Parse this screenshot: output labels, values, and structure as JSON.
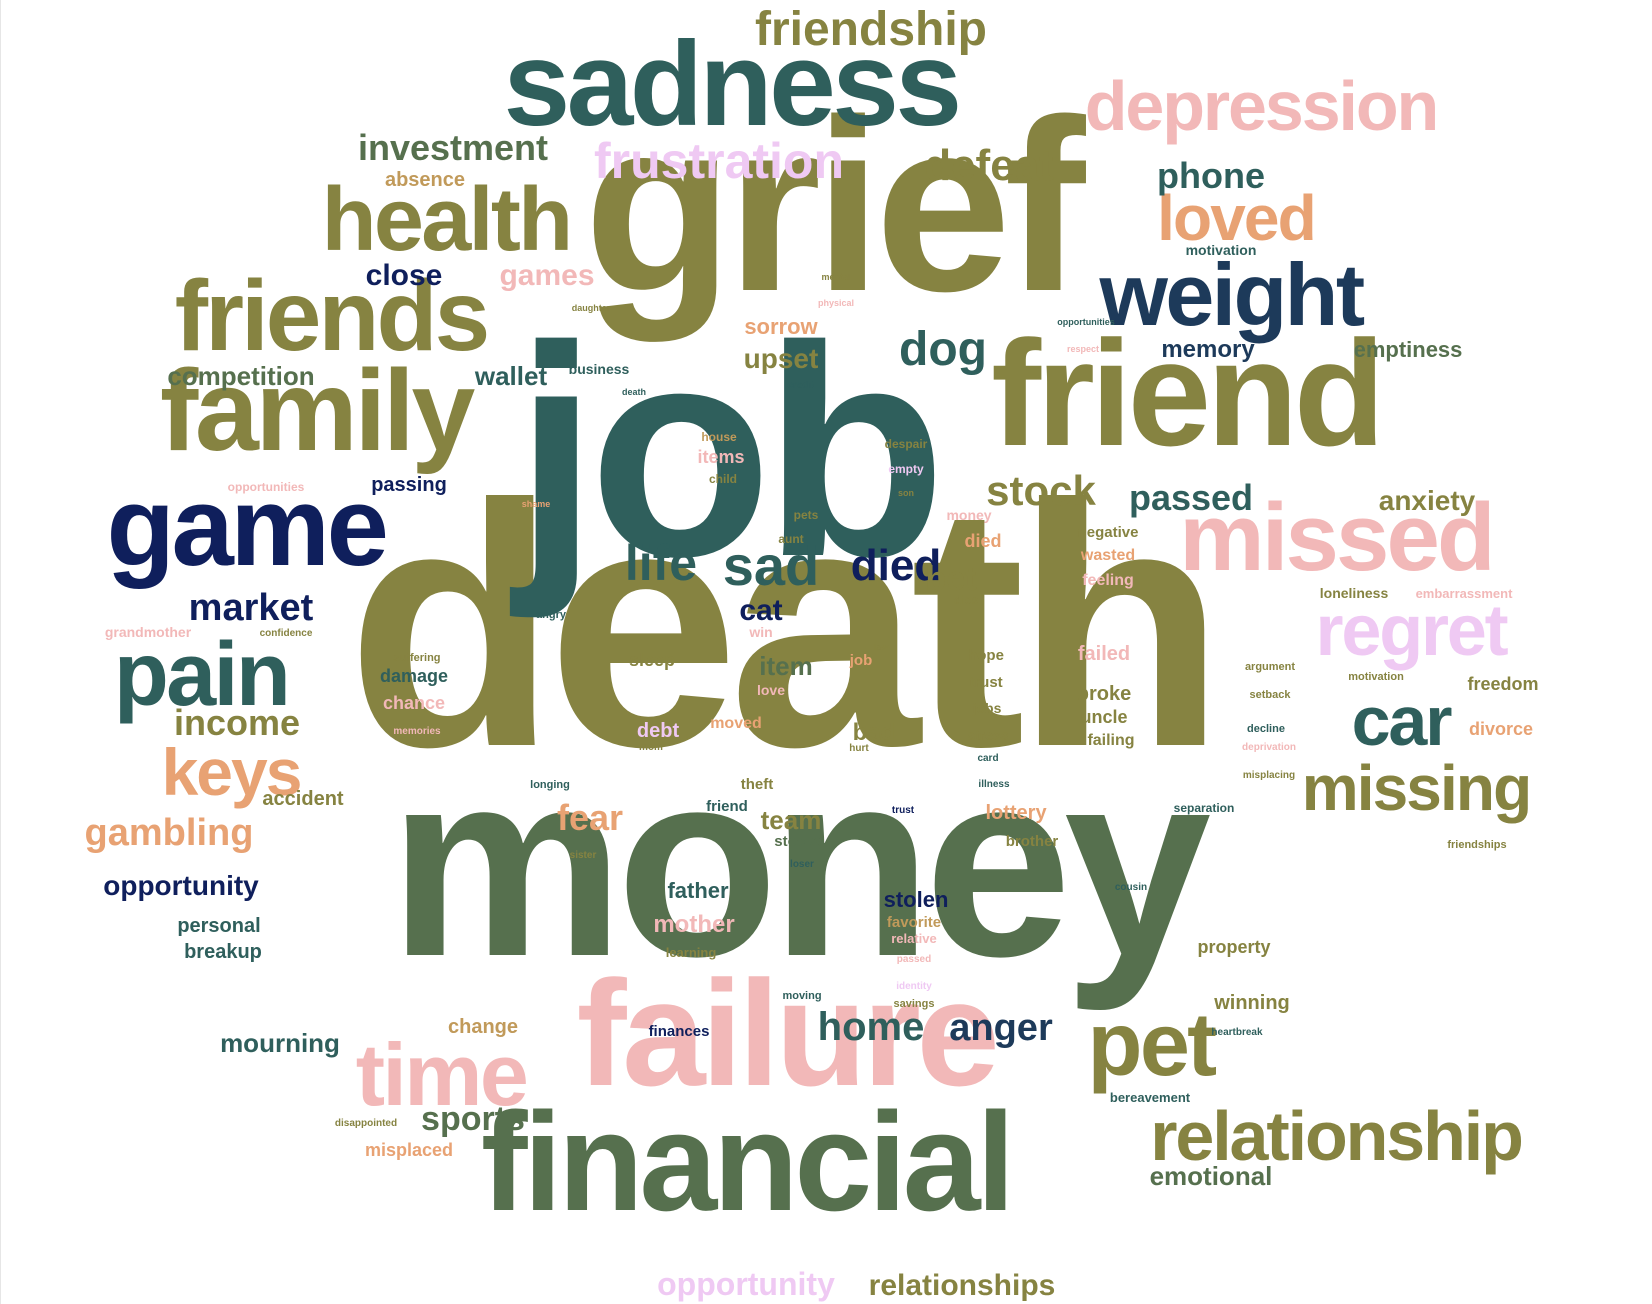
{
  "palette": {
    "olive": "#868341",
    "slate": "#2f5f5c",
    "navy": "#0f1f5c",
    "deep_blue": "#1d3a5a",
    "green": "#56704e",
    "pink": "#f2b8b8",
    "orange": "#e8a273",
    "lilac": "#efc9f3",
    "tan": "#c19a5a"
  },
  "words": [
    {
      "text": "death",
      "color": "olive",
      "weight": 100
    },
    {
      "text": "money",
      "color": "green",
      "weight": 96
    },
    {
      "text": "job",
      "color": "slate",
      "weight": 90
    },
    {
      "text": "grief",
      "color": "olive",
      "weight": 86
    },
    {
      "text": "failure",
      "color": "pink",
      "weight": 62
    },
    {
      "text": "friend",
      "color": "olive",
      "weight": 60
    },
    {
      "text": "financial",
      "color": "green",
      "weight": 58
    },
    {
      "text": "sadness",
      "color": "slate",
      "weight": 55
    },
    {
      "text": "family",
      "color": "olive",
      "weight": 52
    },
    {
      "text": "game",
      "color": "navy",
      "weight": 50
    },
    {
      "text": "missed",
      "color": "pink",
      "weight": 45
    },
    {
      "text": "friends",
      "color": "olive",
      "weight": 45
    },
    {
      "text": "health",
      "color": "olive",
      "weight": 43
    },
    {
      "text": "weight",
      "color": "deep_blue",
      "weight": 42
    },
    {
      "text": "time",
      "color": "pink",
      "weight": 40
    },
    {
      "text": "pet",
      "color": "olive",
      "weight": 40
    },
    {
      "text": "pain",
      "color": "slate",
      "weight": 38
    },
    {
      "text": "depression",
      "color": "pink",
      "weight": 32
    },
    {
      "text": "relationship",
      "color": "olive",
      "weight": 32
    },
    {
      "text": "missing",
      "color": "olive",
      "weight": 30
    },
    {
      "text": "regret",
      "color": "lilac",
      "weight": 30
    },
    {
      "text": "car",
      "color": "slate",
      "weight": 30
    },
    {
      "text": "keys",
      "color": "orange",
      "weight": 30
    },
    {
      "text": "loved",
      "color": "orange",
      "weight": 28
    },
    {
      "text": "friendship",
      "color": "olive",
      "weight": 25
    },
    {
      "text": "frustration",
      "color": "lilac",
      "weight": 25
    },
    {
      "text": "defeat",
      "color": "olive",
      "weight": 23
    },
    {
      "text": "sad",
      "color": "slate",
      "weight": 24
    },
    {
      "text": "home",
      "color": "slate",
      "weight": 20
    },
    {
      "text": "dog",
      "color": "slate",
      "weight": 23
    },
    {
      "text": "life",
      "color": "slate",
      "weight": 22
    },
    {
      "text": "died",
      "color": "navy",
      "weight": 21
    },
    {
      "text": "stock",
      "color": "olive",
      "weight": 20
    },
    {
      "text": "anger",
      "color": "deep_blue",
      "weight": 19
    },
    {
      "text": "investment",
      "color": "green",
      "weight": 19
    },
    {
      "text": "gambling",
      "color": "orange",
      "weight": 18
    },
    {
      "text": "market",
      "color": "navy",
      "weight": 18
    },
    {
      "text": "passed",
      "color": "slate",
      "weight": 17
    },
    {
      "text": "phone",
      "color": "slate",
      "weight": 17
    },
    {
      "text": "sports",
      "color": "green",
      "weight": 16
    },
    {
      "text": "income",
      "color": "olive",
      "weight": 16
    },
    {
      "text": "fear",
      "color": "orange",
      "weight": 16
    },
    {
      "text": "relationships",
      "color": "olive",
      "weight": 15
    },
    {
      "text": "opportunity",
      "color": "lilac",
      "weight": 15
    },
    {
      "text": "close",
      "color": "navy",
      "weight": 14
    },
    {
      "text": "anxiety",
      "color": "olive",
      "weight": 14
    },
    {
      "text": "bet",
      "color": "olive",
      "weight": 14
    },
    {
      "text": "cat",
      "color": "navy",
      "weight": 14
    },
    {
      "text": "games",
      "color": "pink",
      "weight": 14
    },
    {
      "text": "emotional",
      "color": "green",
      "weight": 13
    },
    {
      "text": "opportunity",
      "color": "navy",
      "weight": 13
    },
    {
      "text": "mourning",
      "color": "slate",
      "weight": 13
    },
    {
      "text": "upset",
      "color": "olive",
      "weight": 13
    },
    {
      "text": "competition",
      "color": "green",
      "weight": 12
    },
    {
      "text": "wallet",
      "color": "slate",
      "weight": 12
    },
    {
      "text": "memory",
      "color": "deep_blue",
      "weight": 12
    },
    {
      "text": "emptiness",
      "color": "green",
      "weight": 11
    },
    {
      "text": "item",
      "color": "green",
      "weight": 12
    },
    {
      "text": "team",
      "color": "olive",
      "weight": 12
    },
    {
      "text": "bad",
      "color": "olive",
      "weight": 12
    },
    {
      "text": "mother",
      "color": "pink",
      "weight": 12
    },
    {
      "text": "father",
      "color": "slate",
      "weight": 11
    },
    {
      "text": "stolen",
      "color": "navy",
      "weight": 11
    },
    {
      "text": "sorrow",
      "color": "orange",
      "weight": 11
    },
    {
      "text": "absence",
      "color": "tan",
      "weight": 10
    },
    {
      "text": "personal",
      "color": "slate",
      "weight": 10
    },
    {
      "text": "breakup",
      "color": "slate",
      "weight": 10
    },
    {
      "text": "accident",
      "color": "olive",
      "weight": 10
    },
    {
      "text": "lottery",
      "color": "orange",
      "weight": 10
    },
    {
      "text": "winning",
      "color": "olive",
      "weight": 10
    },
    {
      "text": "failed",
      "color": "pink",
      "weight": 10
    },
    {
      "text": "broke",
      "color": "olive",
      "weight": 10
    },
    {
      "text": "passing",
      "color": "navy",
      "weight": 10
    },
    {
      "text": "debt",
      "color": "lilac",
      "weight": 10
    },
    {
      "text": "change",
      "color": "tan",
      "weight": 10
    },
    {
      "text": "misplaced",
      "color": "orange",
      "weight": 10
    },
    {
      "text": "freedom",
      "color": "olive",
      "weight": 10
    },
    {
      "text": "divorce",
      "color": "orange",
      "weight": 10
    },
    {
      "text": "property",
      "color": "olive",
      "weight": 9
    },
    {
      "text": "sleep",
      "color": "olive",
      "weight": 9
    },
    {
      "text": "chance",
      "color": "pink",
      "weight": 9
    },
    {
      "text": "damage",
      "color": "slate",
      "weight": 9
    },
    {
      "text": "uncle",
      "color": "olive",
      "weight": 9
    },
    {
      "text": "items",
      "color": "pink",
      "weight": 9
    },
    {
      "text": "died",
      "color": "orange",
      "weight": 9
    },
    {
      "text": "moved",
      "color": "orange",
      "weight": 9
    },
    {
      "text": "wasted",
      "color": "orange",
      "weight": 8
    },
    {
      "text": "feeling",
      "color": "pink",
      "weight": 8
    },
    {
      "text": "failing",
      "color": "olive",
      "weight": 8
    },
    {
      "text": "finances",
      "color": "navy",
      "weight": 8
    },
    {
      "text": "favorite",
      "color": "tan",
      "weight": 8
    },
    {
      "text": "negative",
      "color": "olive",
      "weight": 8
    },
    {
      "text": "hope",
      "color": "olive",
      "weight": 8
    },
    {
      "text": "trust",
      "color": "olive",
      "weight": 8
    },
    {
      "text": "job",
      "color": "orange",
      "weight": 8
    },
    {
      "text": "love",
      "color": "pink",
      "weight": 8
    },
    {
      "text": "win",
      "color": "pink",
      "weight": 8
    },
    {
      "text": "brother",
      "color": "olive",
      "weight": 8
    },
    {
      "text": "stocks",
      "color": "green",
      "weight": 8
    },
    {
      "text": "theft",
      "color": "olive",
      "weight": 8
    },
    {
      "text": "friend",
      "color": "slate",
      "weight": 8
    },
    {
      "text": "jobs",
      "color": "olive",
      "weight": 7
    },
    {
      "text": "stress",
      "color": "olive",
      "weight": 7
    },
    {
      "text": "business",
      "color": "slate",
      "weight": 7
    },
    {
      "text": "motivation",
      "color": "slate",
      "weight": 7
    },
    {
      "text": "loneliness",
      "color": "olive",
      "weight": 7
    },
    {
      "text": "embarrassment",
      "color": "pink",
      "weight": 7
    },
    {
      "text": "grandmother",
      "color": "pink",
      "weight": 7
    },
    {
      "text": "money",
      "color": "pink",
      "weight": 7
    },
    {
      "text": "learning",
      "color": "olive",
      "weight": 6
    },
    {
      "text": "relative",
      "color": "pink",
      "weight": 6
    },
    {
      "text": "bereavement",
      "color": "slate",
      "weight": 6
    },
    {
      "text": "separation",
      "color": "slate",
      "weight": 6
    },
    {
      "text": "despair",
      "color": "olive",
      "weight": 6
    },
    {
      "text": "empty",
      "color": "lilac",
      "weight": 6
    },
    {
      "text": "house",
      "color": "tan",
      "weight": 6
    },
    {
      "text": "child",
      "color": "olive",
      "weight": 6
    },
    {
      "text": "pets",
      "color": "olive",
      "weight": 6
    },
    {
      "text": "aunt",
      "color": "olive",
      "weight": 6
    },
    {
      "text": "dies",
      "color": "olive",
      "weight": 6
    },
    {
      "text": "longing",
      "color": "slate",
      "weight": 6
    },
    {
      "text": "argument",
      "color": "olive",
      "weight": 6
    },
    {
      "text": "setback",
      "color": "olive",
      "weight": 6
    },
    {
      "text": "motivation",
      "color": "olive",
      "weight": 6
    },
    {
      "text": "friendships",
      "color": "olive",
      "weight": 5
    },
    {
      "text": "decline",
      "color": "slate",
      "weight": 5
    },
    {
      "text": "deprivation",
      "color": "pink",
      "weight": 5
    },
    {
      "text": "misplacing",
      "color": "olive",
      "weight": 5
    },
    {
      "text": "moving",
      "color": "slate",
      "weight": 5
    },
    {
      "text": "savings",
      "color": "olive",
      "weight": 5
    },
    {
      "text": "identity",
      "color": "lilac",
      "weight": 5
    },
    {
      "text": "passed",
      "color": "pink",
      "weight": 5
    },
    {
      "text": "card",
      "color": "slate",
      "weight": 5
    },
    {
      "text": "illness",
      "color": "slate",
      "weight": 5
    },
    {
      "text": "hurt",
      "color": "olive",
      "weight": 5
    },
    {
      "text": "mom",
      "color": "olive",
      "weight": 5
    },
    {
      "text": "angry",
      "color": "slate",
      "weight": 5
    },
    {
      "text": "confidence",
      "color": "olive",
      "weight": 5
    },
    {
      "text": "suffering",
      "color": "olive",
      "weight": 5
    },
    {
      "text": "memories",
      "color": "pink",
      "weight": 5
    },
    {
      "text": "disappointed",
      "color": "olive",
      "weight": 5
    },
    {
      "text": "sister",
      "color": "olive",
      "weight": 5
    },
    {
      "text": "loser",
      "color": "slate",
      "weight": 5
    },
    {
      "text": "trust",
      "color": "navy",
      "weight": 5
    },
    {
      "text": "cousin",
      "color": "slate",
      "weight": 5
    },
    {
      "text": "heartbreak",
      "color": "slate",
      "weight": 5
    },
    {
      "text": "opportunities",
      "color": "pink",
      "weight": 5
    },
    {
      "text": "opportunities",
      "color": "slate",
      "weight": 4
    },
    {
      "text": "respect",
      "color": "pink",
      "weight": 4
    },
    {
      "text": "shame",
      "color": "orange",
      "weight": 4
    },
    {
      "text": "son",
      "color": "olive",
      "weight": 4
    },
    {
      "text": "daughter",
      "color": "olive",
      "weight": 4
    },
    {
      "text": "mental",
      "color": "olive",
      "weight": 4
    },
    {
      "text": "physical",
      "color": "pink",
      "weight": 4
    },
    {
      "text": "credit",
      "color": "slate",
      "weight": 4
    },
    {
      "text": "death",
      "color": "slate",
      "weight": 4
    },
    {
      "text": "law",
      "color": "olive",
      "weight": 4
    }
  ]
}
